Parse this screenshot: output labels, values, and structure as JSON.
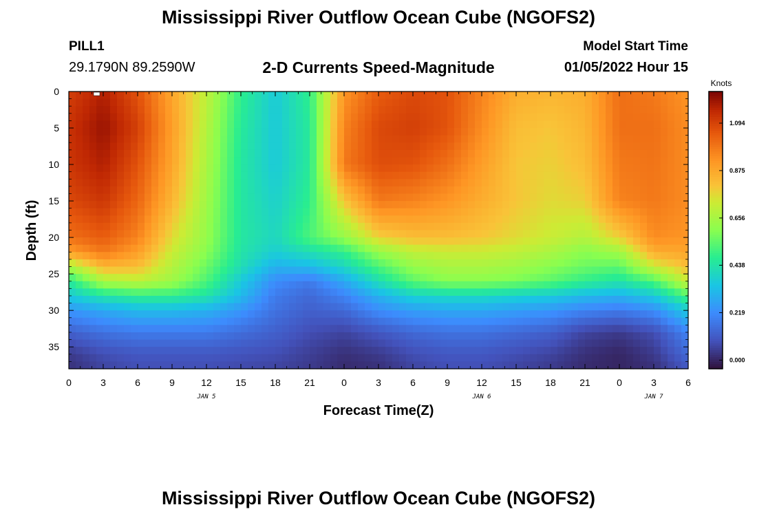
{
  "header": {
    "title": "Mississippi River Outflow Ocean Cube (NGOFS2)",
    "station": "PILL1",
    "coords": "29.1790N  89.2590W",
    "center_title": "2-D Currents Speed-Magnitude",
    "model_start_label": "Model Start Time",
    "model_start_value": "01/05/2022 Hour 15"
  },
  "footer": {
    "title": "Mississippi River Outflow Ocean Cube (NGOFS2)"
  },
  "chart_data": {
    "type": "heatmap",
    "title": "2-D Currents Speed-Magnitude",
    "xlabel": "Forecast Time(Z)",
    "ylabel": "Depth (ft)",
    "x_tick_labels": [
      "0",
      "3",
      "6",
      "9",
      "12",
      "15",
      "18",
      "21",
      "0",
      "3",
      "6",
      "9",
      "12",
      "15",
      "18",
      "21",
      "0",
      "3",
      "6"
    ],
    "date_labels": [
      {
        "label": "JAN 5",
        "hour": 12
      },
      {
        "label": "JAN 6",
        "hour": 36
      },
      {
        "label": "JAN 7",
        "hour": 51
      }
    ],
    "x_range_hours": [
      0,
      54
    ],
    "y_ticks": [
      0,
      5,
      10,
      15,
      20,
      25,
      30,
      35
    ],
    "y_range_ft": [
      0,
      38
    ],
    "colorbar": {
      "unit": "Knots",
      "ticks": [
        "1.094",
        "0.875",
        "0.656",
        "0.438",
        "0.219",
        "0.000"
      ],
      "range": [
        -0.04,
        1.24
      ]
    },
    "speed_knots_by_depth": {
      "depths_ft": [
        0,
        5,
        10,
        15,
        20,
        22,
        24,
        26,
        28,
        30,
        33,
        36,
        38
      ],
      "hours": [
        0,
        3,
        6,
        9,
        12,
        15,
        18,
        21,
        24,
        27,
        30,
        33,
        36,
        39,
        42,
        45,
        48,
        51,
        54
      ],
      "values": [
        [
          1.1,
          1.17,
          1.06,
          0.88,
          0.7,
          0.48,
          0.36,
          0.48,
          0.92,
          1.04,
          1.08,
          1.06,
          0.96,
          0.86,
          0.84,
          0.86,
          1.0,
          0.98,
          0.92
        ],
        [
          1.13,
          1.2,
          1.1,
          0.9,
          0.68,
          0.46,
          0.36,
          0.46,
          0.96,
          1.08,
          1.1,
          1.06,
          0.94,
          0.82,
          0.8,
          0.84,
          1.0,
          1.0,
          0.94
        ],
        [
          1.12,
          1.17,
          1.06,
          0.88,
          0.66,
          0.45,
          0.36,
          0.46,
          0.98,
          1.07,
          1.06,
          1.0,
          0.9,
          0.8,
          0.78,
          0.82,
          0.98,
          0.99,
          0.94
        ],
        [
          1.08,
          1.12,
          1.02,
          0.84,
          0.64,
          0.45,
          0.38,
          0.48,
          0.8,
          0.98,
          0.96,
          0.92,
          0.86,
          0.8,
          0.76,
          0.78,
          0.96,
          0.98,
          0.94
        ],
        [
          1.0,
          1.04,
          0.96,
          0.76,
          0.62,
          0.45,
          0.4,
          0.52,
          0.62,
          0.78,
          0.82,
          0.82,
          0.8,
          0.76,
          0.72,
          0.68,
          0.78,
          0.94,
          0.92
        ],
        [
          0.9,
          0.98,
          0.9,
          0.72,
          0.6,
          0.44,
          0.37,
          0.42,
          0.48,
          0.62,
          0.7,
          0.72,
          0.72,
          0.7,
          0.66,
          0.6,
          0.64,
          0.86,
          0.88
        ],
        [
          0.66,
          0.84,
          0.82,
          0.68,
          0.56,
          0.42,
          0.3,
          0.32,
          0.4,
          0.52,
          0.62,
          0.66,
          0.66,
          0.64,
          0.6,
          0.56,
          0.54,
          0.72,
          0.82
        ],
        [
          0.46,
          0.66,
          0.7,
          0.64,
          0.52,
          0.36,
          0.22,
          0.18,
          0.28,
          0.42,
          0.54,
          0.6,
          0.6,
          0.58,
          0.54,
          0.48,
          0.44,
          0.52,
          0.72
        ],
        [
          0.36,
          0.44,
          0.48,
          0.48,
          0.44,
          0.32,
          0.18,
          0.14,
          0.2,
          0.3,
          0.38,
          0.4,
          0.4,
          0.38,
          0.36,
          0.32,
          0.3,
          0.36,
          0.52
        ],
        [
          0.24,
          0.28,
          0.32,
          0.32,
          0.3,
          0.24,
          0.16,
          0.12,
          0.14,
          0.22,
          0.26,
          0.28,
          0.28,
          0.26,
          0.24,
          0.2,
          0.18,
          0.22,
          0.36
        ],
        [
          0.12,
          0.16,
          0.18,
          0.18,
          0.18,
          0.15,
          0.12,
          0.08,
          0.06,
          0.1,
          0.14,
          0.16,
          0.16,
          0.14,
          0.12,
          0.06,
          0.04,
          0.08,
          0.2
        ],
        [
          0.04,
          0.08,
          0.1,
          0.1,
          0.1,
          0.09,
          0.08,
          0.05,
          0.02,
          0.04,
          0.08,
          0.1,
          0.1,
          0.08,
          0.06,
          0.02,
          0.0,
          0.04,
          0.14
        ],
        [
          0.02,
          0.06,
          0.08,
          0.08,
          0.08,
          0.07,
          0.06,
          0.04,
          0.01,
          0.02,
          0.06,
          0.08,
          0.08,
          0.06,
          0.04,
          0.01,
          0.0,
          0.02,
          0.1
        ]
      ]
    }
  }
}
